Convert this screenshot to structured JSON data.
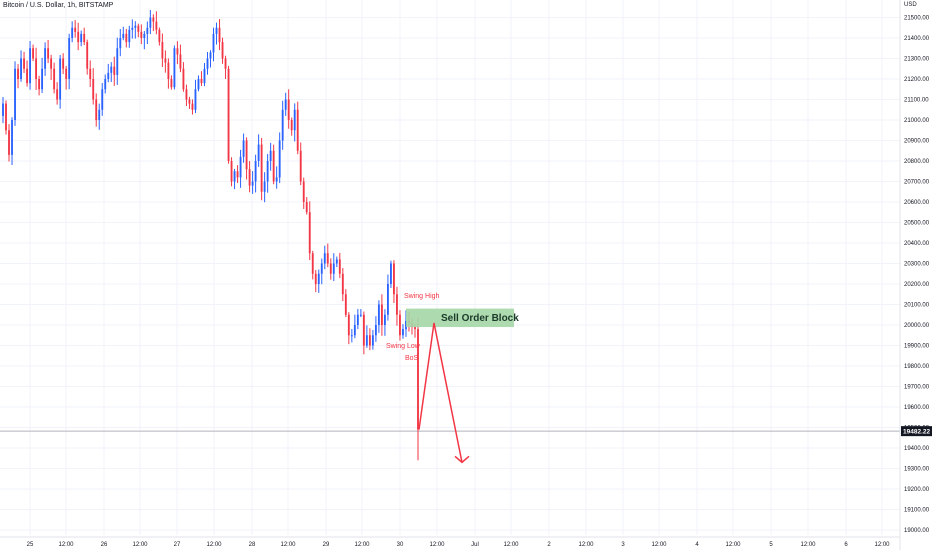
{
  "header": {
    "title": "Bitcoin / U.S. Dollar, 1h, BITSTAMP",
    "currency": "USD"
  },
  "price_axis": {
    "ticks": [
      "21500.00",
      "21400.00",
      "21300.00",
      "21200.00",
      "21100.00",
      "21000.00",
      "20900.00",
      "20800.00",
      "20700.00",
      "20600.00",
      "20500.00",
      "20400.00",
      "20300.00",
      "20200.00",
      "20100.00",
      "20000.00",
      "19900.00",
      "19800.00",
      "19700.00",
      "19600.00",
      "19500.00",
      "19400.00",
      "19300.00",
      "19200.00",
      "19100.00",
      "19000.00"
    ],
    "last_price": "19482.22"
  },
  "time_axis": {
    "ticks": [
      "25",
      "12:00",
      "26",
      "12:00",
      "27",
      "12:00",
      "28",
      "12:00",
      "29",
      "12:00",
      "30",
      "12:00",
      "Jul",
      "12:00",
      "2",
      "12:00",
      "3",
      "12:00",
      "4",
      "12:00",
      "5",
      "12:00",
      "6",
      "12:00"
    ]
  },
  "annotations": {
    "swing_high": "Swing High",
    "swing_low": "Swing Low",
    "bos": "BoS",
    "order_block": "Sell Order Block"
  },
  "colors": {
    "up": "#2962ff",
    "down": "#f23645",
    "order_block": "#a5d6a7",
    "annotation_text": "#f23645",
    "projection": "#f23645"
  },
  "chart_data": {
    "type": "candlestick",
    "symbol": "Bitcoin / U.S. Dollar",
    "interval": "1h",
    "exchange": "BITSTAMP",
    "ylim": [
      19000,
      21550
    ],
    "closes": [
      21080,
      20950,
      20830,
      21000,
      21250,
      21200,
      21300,
      21250,
      21180,
      21350,
      21300,
      21200,
      21150,
      21250,
      21350,
      21300,
      21250,
      21150,
      21100,
      21300,
      21250,
      21200,
      21400,
      21450,
      21430,
      21380,
      21420,
      21380,
      21250,
      21200,
      21100,
      21000,
      21050,
      21150,
      21200,
      21230,
      21260,
      21220,
      21350,
      21400,
      21420,
      21380,
      21440,
      21450,
      21460,
      21430,
      21400,
      21420,
      21450,
      21500,
      21480,
      21440,
      21380,
      21300,
      21280,
      21200,
      21160,
      21350,
      21320,
      21250,
      21150,
      21100,
      21080,
      21050,
      21150,
      21200,
      21180,
      21250,
      21300,
      21330,
      21420,
      21450,
      21380,
      21300,
      21250,
      20800,
      20700,
      20750,
      20720,
      20820,
      20900,
      20760,
      20680,
      20700,
      20800,
      20880,
      20650,
      20700,
      20800,
      20850,
      20700,
      20720,
      20900,
      21050,
      21100,
      21000,
      20950,
      21050,
      20850,
      20700,
      20600,
      20550,
      20350,
      20250,
      20200,
      20250,
      20300,
      20350,
      20300,
      20250,
      20300,
      20320,
      20250,
      20150,
      20050,
      19950,
      19950,
      20000,
      20050,
      20050,
      19900,
      19950,
      19900,
      19950,
      20000,
      20100,
      20000,
      20050,
      20200,
      20300,
      20150,
      20050,
      19950,
      19980,
      20020,
      20010,
      19990,
      19980,
      19490
    ],
    "projection": [
      19490,
      20010,
      19330
    ],
    "sell_order_block": [
      19990,
      20080
    ],
    "horizontal_line": 19482.22
  }
}
